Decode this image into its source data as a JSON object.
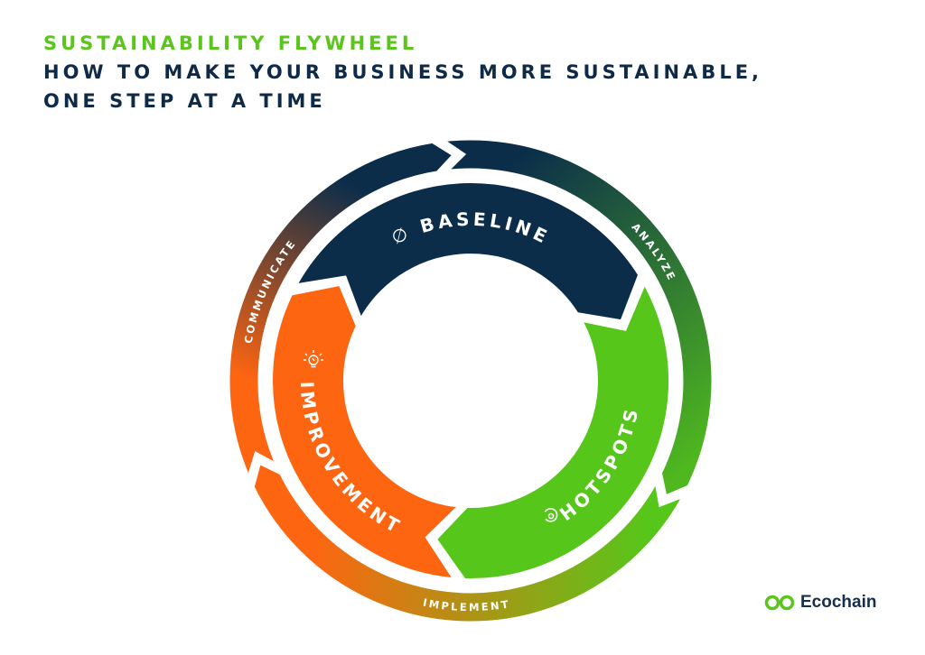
{
  "header": {
    "title": "SUSTAINABILITY FLYWHEEL",
    "subtitle_line1": "HOW TO MAKE YOUR BUSINESS MORE SUSTAINABLE,",
    "subtitle_line2": "ONE STEP AT A TIME"
  },
  "wheel": {
    "inner": [
      {
        "label": "BASELINE",
        "icon": "diameter-icon",
        "color": "#0b2d4a"
      },
      {
        "label": "HOTSPOTS",
        "icon": "hotspot-icon",
        "color": "#56c61a"
      },
      {
        "label": "IMPROVEMENT",
        "icon": "lightbulb-icon",
        "color": "#fe6511"
      }
    ],
    "outer": [
      {
        "label": "ANALYZE",
        "from_color": "#0b2d4a",
        "to_color": "#4fb81f"
      },
      {
        "label": "IMPLEMENT",
        "from_color": "#56c61a",
        "to_color": "#fe6511"
      },
      {
        "label": "COMMUNICATE",
        "from_color": "#fe6511",
        "to_color": "#0b2d4a"
      }
    ],
    "baseline_icon_glyph": "∅"
  },
  "logo": {
    "text": "Ecochain",
    "color": "#5bc51e"
  }
}
